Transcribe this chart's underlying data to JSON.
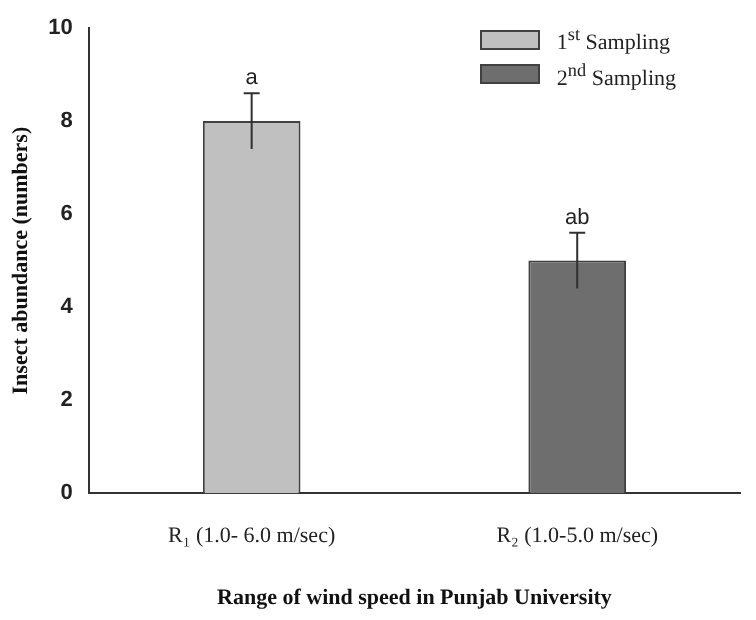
{
  "chart_data": {
    "type": "bar",
    "xlabel": "Range of wind speed in Punjab University",
    "ylabel": "Insect abundance (numbers)",
    "categories": [
      "R₁ (1.0- 6.0 m/sec)",
      "R₂ (1.0-5.0 m/sec)"
    ],
    "series": [
      {
        "name": "1$^{st}$ Sampling",
        "color": "#c0c0c0",
        "values": [
          8,
          null
        ],
        "errors": [
          0.6,
          null
        ]
      },
      {
        "name": "2$^{nd}$ Sampling",
        "color": "#6e6e6e",
        "values": [
          null,
          5
        ],
        "errors": [
          null,
          0.6
        ]
      }
    ],
    "annotations": [
      {
        "text": "a",
        "x": "R₁ (1.0- 6.0 m/sec)",
        "y": 8.6
      },
      {
        "text": "ab",
        "x": "R₂ (1.0-5.0 m/sec)",
        "y": 5.6
      }
    ],
    "ylim": [
      0,
      10
    ],
    "yticks": [
      0,
      2,
      4,
      6,
      8,
      10
    ],
    "grid": false,
    "legend": "top right"
  }
}
